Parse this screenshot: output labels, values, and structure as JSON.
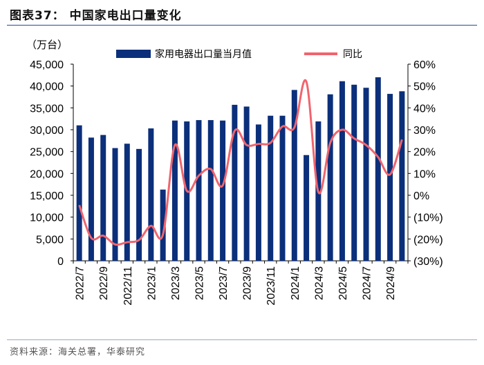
{
  "header": {
    "title": "图表37：  中国家电出口量变化"
  },
  "footer": {
    "source": "资料来源：海关总署，华泰研究"
  },
  "chart_data": {
    "type": "bar",
    "unit_label": "（万台）",
    "categories": [
      "2022/7",
      "2022/8",
      "2022/9",
      "2022/10",
      "2022/11",
      "2022/12",
      "2023/1",
      "2023/2",
      "2023/3",
      "2023/4",
      "2023/5",
      "2023/6",
      "2023/7",
      "2023/8",
      "2023/9",
      "2023/10",
      "2023/11",
      "2023/12",
      "2024/1",
      "2024/2",
      "2024/3",
      "2024/4",
      "2024/5",
      "2024/6",
      "2024/7",
      "2024/8",
      "2024/9",
      "2024/10"
    ],
    "x_tick_labels": [
      "2022/7",
      "2022/9",
      "2022/11",
      "2023/1",
      "2023/3",
      "2023/5",
      "2023/7",
      "2023/9",
      "2023/11",
      "2024/1",
      "2024/3",
      "2024/5",
      "2024/7",
      "2024/9"
    ],
    "series": [
      {
        "name": "家用电器出口量当月值",
        "type": "bar",
        "axis": "left",
        "color": "#0b2f7a",
        "values": [
          31000,
          28200,
          28800,
          25800,
          26800,
          25600,
          30300,
          16300,
          32100,
          31900,
          32200,
          32200,
          32100,
          35700,
          35300,
          31200,
          33200,
          33200,
          39100,
          24200,
          31900,
          38100,
          41100,
          40300,
          39600,
          42000,
          38200,
          38800
        ]
      },
      {
        "name": "同比",
        "type": "line",
        "axis": "right",
        "color": "#f0646e",
        "values": [
          -4.5,
          -19.5,
          -18.5,
          -22.5,
          -21.5,
          -20.5,
          -14,
          -18,
          23,
          2,
          9,
          12,
          4.5,
          29.5,
          23,
          23.5,
          24,
          31.5,
          31,
          52,
          1.5,
          24,
          30,
          26,
          23,
          17.5,
          9.5,
          25.5
        ]
      }
    ],
    "y_left": {
      "min": 0,
      "max": 45000,
      "ticks": [
        "0",
        "5,000",
        "10,000",
        "15,000",
        "20,000",
        "25,000",
        "30,000",
        "35,000",
        "40,000",
        "45,000"
      ]
    },
    "y_right": {
      "min": -30,
      "max": 60,
      "ticks": [
        "(30%)",
        "(20%)",
        "(10%)",
        "0%",
        "10%",
        "20%",
        "30%",
        "40%",
        "50%",
        "60%"
      ]
    },
    "legend": [
      {
        "label": "家用电器出口量当月值",
        "kind": "bar",
        "color": "#0b2f7a"
      },
      {
        "label": "同比",
        "kind": "line",
        "color": "#f0646e"
      }
    ],
    "legend_position": "top-center"
  }
}
